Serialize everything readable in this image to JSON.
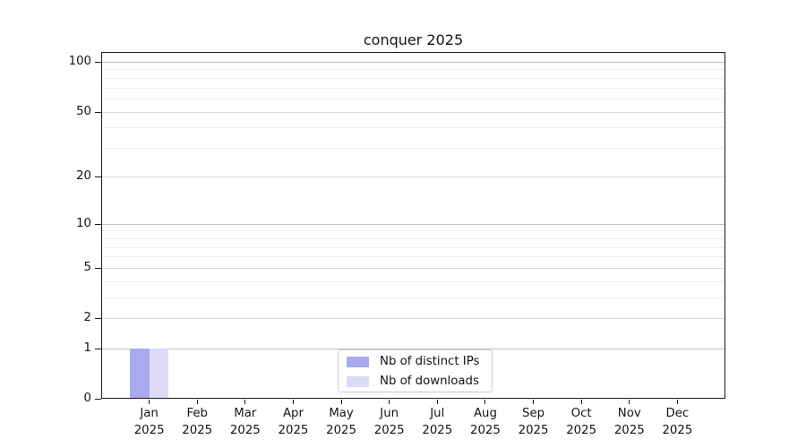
{
  "figure": {
    "title": "conquer 2025"
  },
  "chart_data": {
    "type": "bar",
    "title": "conquer 2025",
    "x_categories": [
      "Jan 2025",
      "Feb 2025",
      "Mar 2025",
      "Apr 2025",
      "May 2025",
      "Jun 2025",
      "Jul 2025",
      "Aug 2025",
      "Sep 2025",
      "Oct 2025",
      "Nov 2025",
      "Dec 2025"
    ],
    "x_tick_months": [
      "Jan",
      "Feb",
      "Mar",
      "Apr",
      "May",
      "Jun",
      "Jul",
      "Aug",
      "Sep",
      "Oct",
      "Nov",
      "Dec"
    ],
    "x_tick_year": "2025",
    "series": [
      {
        "name": "Nb of distinct IPs",
        "color": "#a9a9f0",
        "values": [
          1,
          0,
          0,
          0,
          0,
          0,
          0,
          0,
          0,
          0,
          0,
          0
        ]
      },
      {
        "name": "Nb of downloads",
        "color": "#dcdcf8",
        "values": [
          1,
          0,
          0,
          0,
          0,
          0,
          0,
          0,
          0,
          0,
          0,
          0
        ]
      }
    ],
    "yscale": "log1p",
    "ylim": [
      0,
      115
    ],
    "y_major_ticks": [
      0,
      1,
      2,
      5,
      10,
      20,
      50,
      100
    ],
    "y_minor_ticks": [
      3,
      4,
      6,
      7,
      8,
      9,
      30,
      40,
      60,
      70,
      80,
      90
    ],
    "y_decade_ticks": [
      1,
      10,
      100
    ],
    "grid": true,
    "legend_position": "lower center",
    "colors": {
      "grid_decade": "#c0c0c0",
      "grid_major": "#dadada",
      "grid_minor": "#ececec",
      "spine": "#1a1a1a",
      "text": "#141414",
      "background": "#ffffff",
      "legend_border": "#cccccc"
    }
  }
}
